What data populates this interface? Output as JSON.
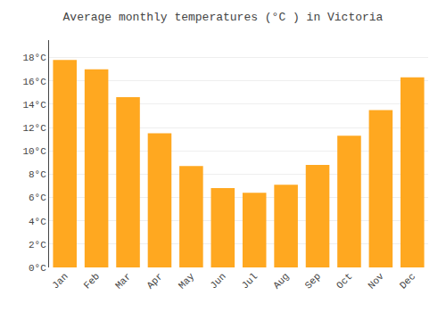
{
  "chart_data": {
    "type": "bar",
    "title": "Average monthly temperatures (°C ) in Victoria",
    "categories": [
      "Jan",
      "Feb",
      "Mar",
      "Apr",
      "May",
      "Jun",
      "Jul",
      "Aug",
      "Sep",
      "Oct",
      "Nov",
      "Dec"
    ],
    "values": [
      17.8,
      17.0,
      14.6,
      11.5,
      8.7,
      6.8,
      6.4,
      7.1,
      8.8,
      11.3,
      13.5,
      16.3
    ],
    "color": "#FFA820",
    "ylim": [
      0,
      19.5
    ],
    "yticks": [
      {
        "value": 0,
        "label": "0°C"
      },
      {
        "value": 2,
        "label": "2°C"
      },
      {
        "value": 4,
        "label": "4°C"
      },
      {
        "value": 6,
        "label": "6°C"
      },
      {
        "value": 8,
        "label": "8°C"
      },
      {
        "value": 10,
        "label": "10°C"
      },
      {
        "value": 12,
        "label": "12°C"
      },
      {
        "value": 14,
        "label": "14°C"
      },
      {
        "value": 16,
        "label": "16°C"
      },
      {
        "value": 18,
        "label": "18°C"
      }
    ],
    "grid": true
  }
}
